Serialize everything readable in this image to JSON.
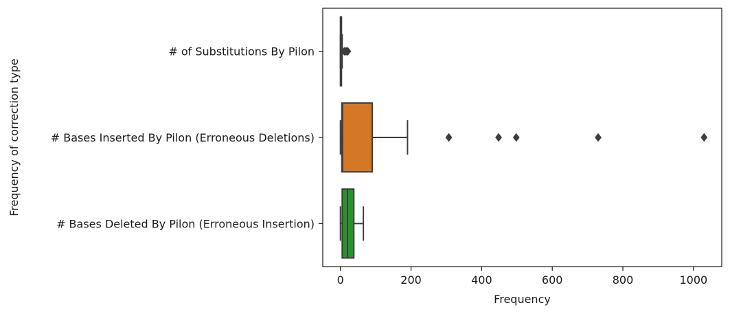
{
  "chart_data": {
    "type": "boxplot",
    "orientation": "horizontal",
    "title": "",
    "xlabel": "Frequency",
    "ylabel": "Frequency of correction type",
    "xlim": [
      -50,
      1080
    ],
    "xticks": [
      0,
      200,
      400,
      600,
      800,
      1000
    ],
    "xtick_labels": [
      "0",
      "200",
      "400",
      "600",
      "800",
      "1000"
    ],
    "grid": false,
    "categories": [
      "# of Substitutions By Pilon",
      "# Bases Inserted By Pilon (Erroneous Deletions)",
      "# Bases Deleted By Pilon (Erroneous Insertion)"
    ],
    "series": [
      {
        "name": "# of Substitutions By Pilon",
        "color": "#1f77b4",
        "whisker_low": 0,
        "q1": 0,
        "median": 1,
        "q3": 3,
        "whisker_high": 5,
        "outliers": [
          11,
          15,
          18,
          21
        ]
      },
      {
        "name": "# Bases Inserted By Pilon (Erroneous Deletions)",
        "color": "#e6822a",
        "whisker_low": 0,
        "q1": 4,
        "median": 6,
        "q3": 90,
        "whisker_high": 190,
        "outliers": [
          307,
          448,
          498,
          730,
          1030
        ]
      },
      {
        "name": "# Bases Deleted By Pilon (Erroneous Insertion)",
        "color": "#2ca02c",
        "whisker_low": 0,
        "q1": 5,
        "median": 20,
        "q3": 38,
        "whisker_high": 65,
        "outliers": []
      }
    ]
  }
}
